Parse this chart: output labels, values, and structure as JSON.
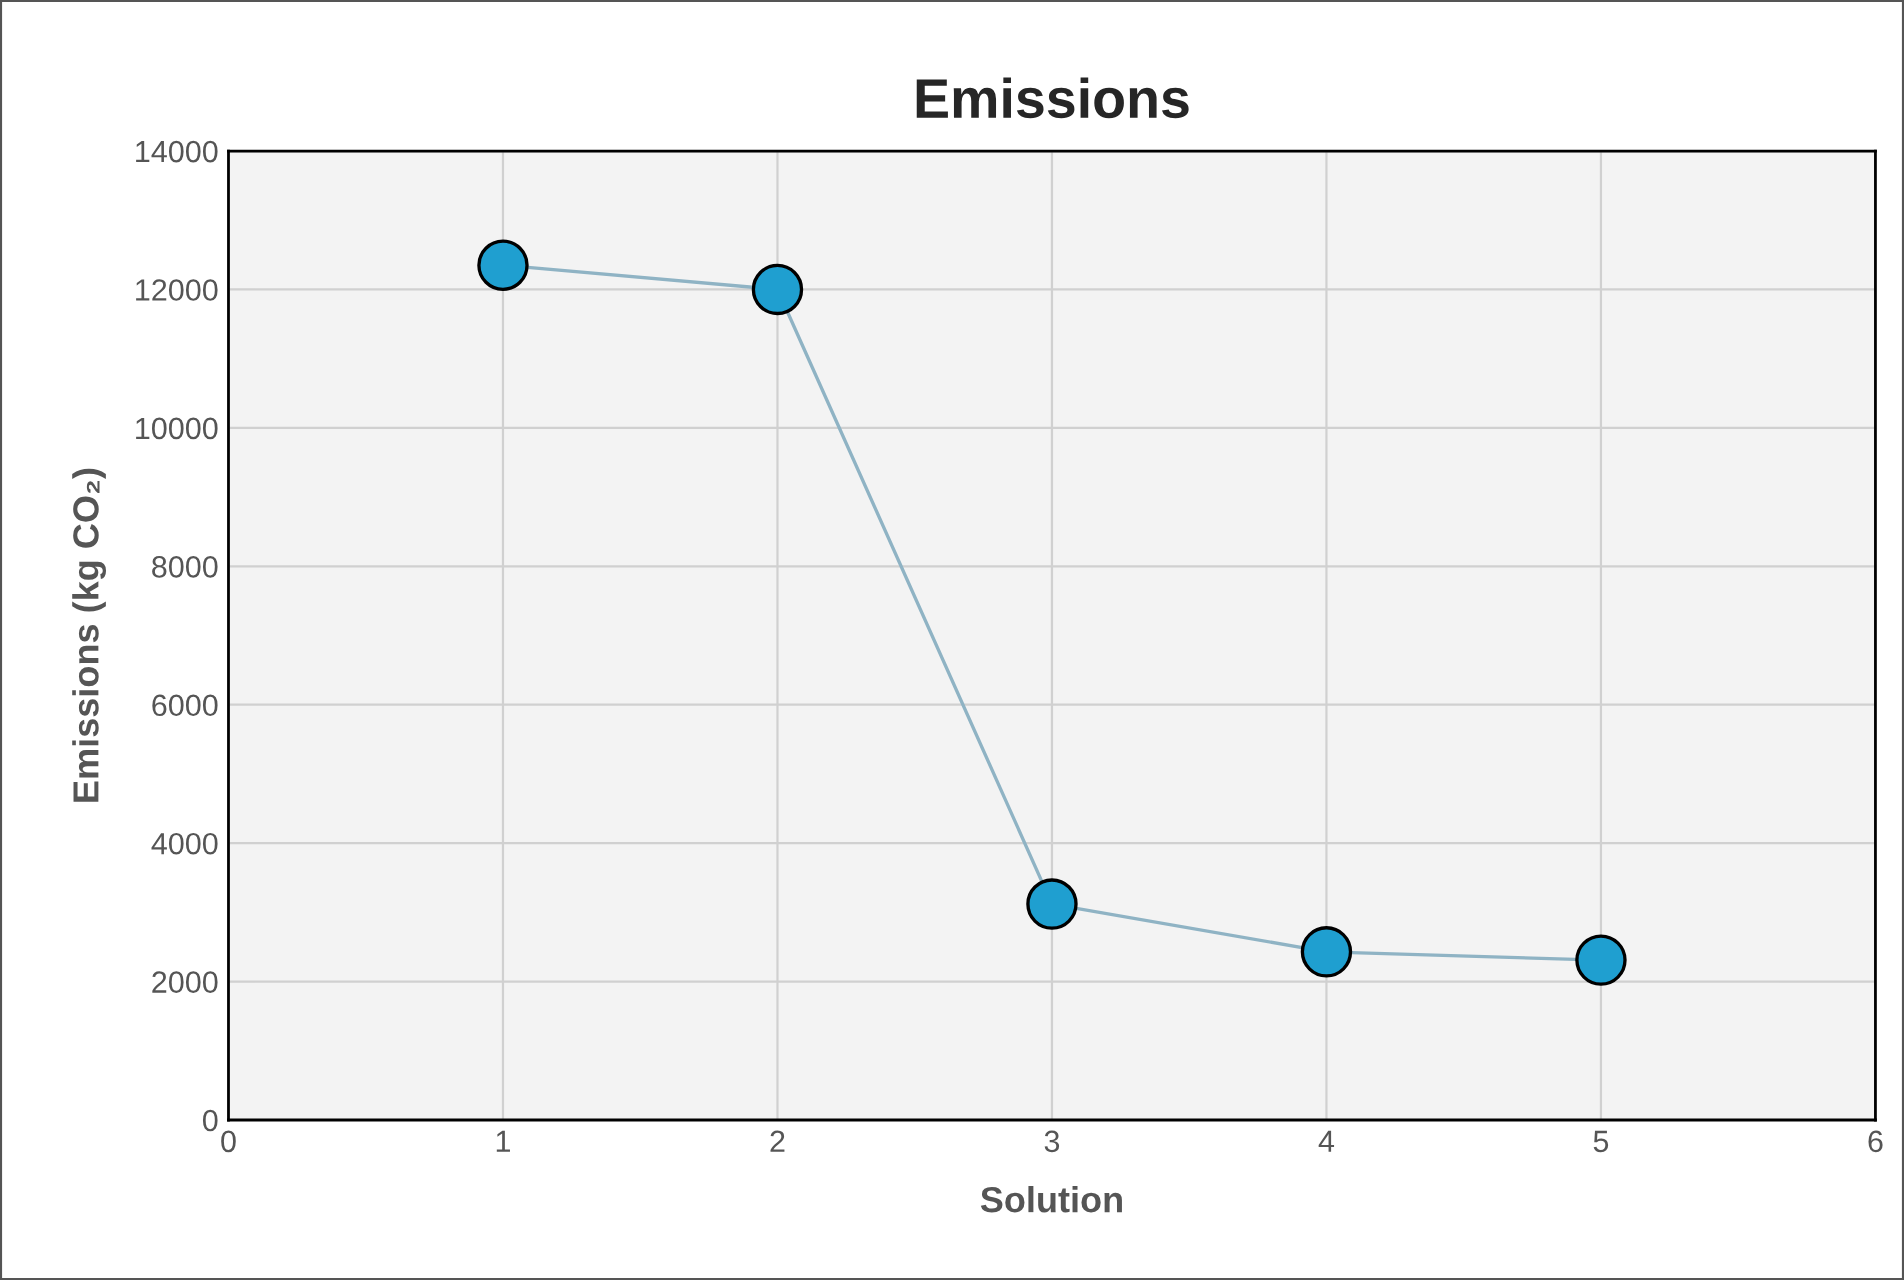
{
  "chart_data": {
    "type": "line",
    "title": "Emissions",
    "xlabel": "Solution",
    "ylabel": "Emissions (kg CO₂)",
    "x": [
      1,
      2,
      3,
      4,
      5
    ],
    "series": [
      {
        "color": "#8fb3c4",
        "colors": [
          "#1f9fd0",
          "#1f9fd0",
          "#1f9fd0",
          "#1f9fd0",
          "#1f9fd0"
        ],
        "values": [
          12350,
          12000,
          3120,
          2430,
          2310
        ]
      }
    ],
    "xlim": [
      0,
      6
    ],
    "xticks": [
      0,
      1,
      2,
      3,
      4,
      5,
      6
    ],
    "ylim": [
      0,
      14000
    ],
    "yticks": [
      0,
      2000,
      4000,
      6000,
      8000,
      10000,
      12000,
      14000
    ],
    "grid": true,
    "legend": false,
    "marker": "circle",
    "line_style": "solid"
  }
}
